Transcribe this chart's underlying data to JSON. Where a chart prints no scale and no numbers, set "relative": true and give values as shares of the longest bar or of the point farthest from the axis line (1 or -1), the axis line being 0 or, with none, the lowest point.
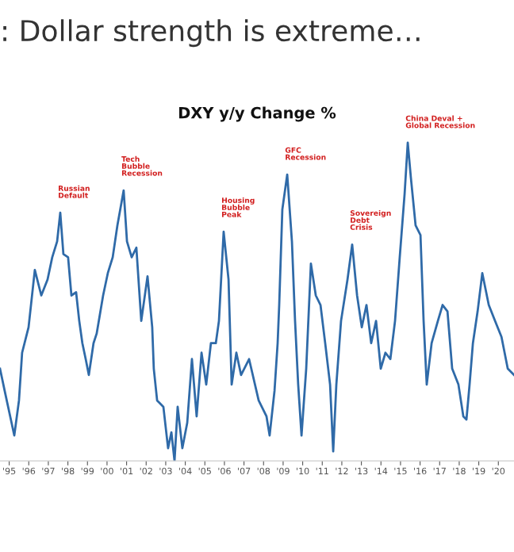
{
  "chart_data": {
    "type": "line",
    "title": "DXY y/y Change %",
    "subtitle": ": Dollar strength is extreme…",
    "relative": true,
    "grid": false,
    "legend": false,
    "marker": "none",
    "line_style": "solid",
    "xlim": [
      1994.53,
      2020.8
    ],
    "xticks": [
      {
        "value": 1995,
        "label": "'95"
      },
      {
        "value": 1996,
        "label": "'96"
      },
      {
        "value": 1997,
        "label": "'97"
      },
      {
        "value": 1998,
        "label": "'98"
      },
      {
        "value": 1999,
        "label": "'99"
      },
      {
        "value": 2000,
        "label": "'00"
      },
      {
        "value": 2001,
        "label": "'01"
      },
      {
        "value": 2002,
        "label": "'02"
      },
      {
        "value": 2003,
        "label": "'03"
      },
      {
        "value": 2004,
        "label": "'04"
      },
      {
        "value": 2005,
        "label": "'05"
      },
      {
        "value": 2006,
        "label": "'06"
      },
      {
        "value": 2007,
        "label": "'07"
      },
      {
        "value": 2008,
        "label": "'08"
      },
      {
        "value": 2009,
        "label": "'09"
      },
      {
        "value": 2010,
        "label": "'10"
      },
      {
        "value": 2011,
        "label": "'11"
      },
      {
        "value": 2012,
        "label": "'12"
      },
      {
        "value": 2013,
        "label": "'13"
      },
      {
        "value": 2014,
        "label": "'14"
      },
      {
        "value": 2015,
        "label": "'15"
      },
      {
        "value": 2016,
        "label": "'16"
      },
      {
        "value": 2017,
        "label": "'17"
      },
      {
        "value": 2018,
        "label": "'18"
      },
      {
        "value": 2019,
        "label": "'19"
      },
      {
        "value": 2020,
        "label": "'20"
      }
    ],
    "x": [
      1994.53,
      1994.77,
      1995.26,
      1995.5,
      1995.66,
      1995.99,
      1996.31,
      1996.64,
      1996.96,
      1997.2,
      1997.45,
      1997.61,
      1997.77,
      1998.01,
      1998.18,
      1998.42,
      1998.58,
      1998.74,
      1998.91,
      1999.07,
      1999.31,
      1999.47,
      1999.8,
      2000.04,
      2000.29,
      2000.53,
      2000.85,
      2001.02,
      2001.26,
      2001.5,
      2001.75,
      2002.07,
      2002.31,
      2002.39,
      2002.56,
      2002.88,
      2003.12,
      2003.29,
      2003.45,
      2003.61,
      2003.85,
      2004.1,
      2004.34,
      2004.58,
      2004.83,
      2005.07,
      2005.31,
      2005.56,
      2005.72,
      2005.96,
      2006.21,
      2006.37,
      2006.61,
      2006.85,
      2007.26,
      2007.75,
      2008.15,
      2008.31,
      2008.56,
      2008.72,
      2008.8,
      2008.96,
      2009.21,
      2009.45,
      2009.61,
      2009.77,
      2009.94,
      2010.18,
      2010.42,
      2010.67,
      2010.91,
      2011.15,
      2011.4,
      2011.56,
      2011.72,
      2011.96,
      2012.29,
      2012.53,
      2012.78,
      2013.02,
      2013.26,
      2013.5,
      2013.75,
      2013.99,
      2014.23,
      2014.48,
      2014.72,
      2014.96,
      2015.21,
      2015.37,
      2015.53,
      2015.77,
      2016.02,
      2016.18,
      2016.34,
      2016.59,
      2016.91,
      2017.15,
      2017.4,
      2017.64,
      2017.96,
      2018.21,
      2018.37,
      2018.53,
      2018.7,
      2018.94,
      2019.18,
      2019.51,
      2019.83,
      2020.16,
      2020.48,
      2020.8
    ],
    "series": [
      {
        "color": "#2f6aa8",
        "values": [
          0.29,
          0.22,
          0.08,
          0.19,
          0.34,
          0.42,
          0.6,
          0.52,
          0.57,
          0.64,
          0.69,
          0.78,
          0.65,
          0.64,
          0.52,
          0.53,
          0.44,
          0.37,
          0.32,
          0.27,
          0.37,
          0.4,
          0.52,
          0.59,
          0.64,
          0.74,
          0.85,
          0.69,
          0.64,
          0.67,
          0.44,
          0.58,
          0.42,
          0.29,
          0.19,
          0.17,
          0.04,
          0.09,
          0,
          0.17,
          0.04,
          0.12,
          0.32,
          0.14,
          0.34,
          0.24,
          0.37,
          0.37,
          0.44,
          0.72,
          0.57,
          0.24,
          0.34,
          0.27,
          0.32,
          0.19,
          0.14,
          0.08,
          0.22,
          0.37,
          0.49,
          0.79,
          0.9,
          0.69,
          0.44,
          0.24,
          0.08,
          0.29,
          0.62,
          0.52,
          0.49,
          0.37,
          0.24,
          0.03,
          0.24,
          0.44,
          0.57,
          0.68,
          0.52,
          0.42,
          0.49,
          0.37,
          0.44,
          0.29,
          0.34,
          0.32,
          0.44,
          0.64,
          0.84,
          1,
          0.89,
          0.74,
          0.71,
          0.44,
          0.24,
          0.37,
          0.44,
          0.49,
          0.47,
          0.29,
          0.24,
          0.14,
          0.13,
          0.24,
          0.37,
          0.47,
          0.59,
          0.49,
          0.44,
          0.39,
          0.29,
          0.27
        ]
      }
    ],
    "annotations": [
      {
        "text": "Russian\nDefault",
        "x": 1997.61,
        "y": 0.78
      },
      {
        "text": "Tech\nBubble\nRecession",
        "x": 2000.85,
        "y": 0.85
      },
      {
        "text": "Housing\nBubble\nPeak",
        "x": 2005.96,
        "y": 0.72
      },
      {
        "text": "GFC\nRecession",
        "x": 2009.21,
        "y": 0.9
      },
      {
        "text": "Sovereign\nDebt\nCrisis",
        "x": 2012.53,
        "y": 0.68
      },
      {
        "text": "China Deval +\nGlobal Recession",
        "x": 2015.37,
        "y": 1
      }
    ]
  }
}
